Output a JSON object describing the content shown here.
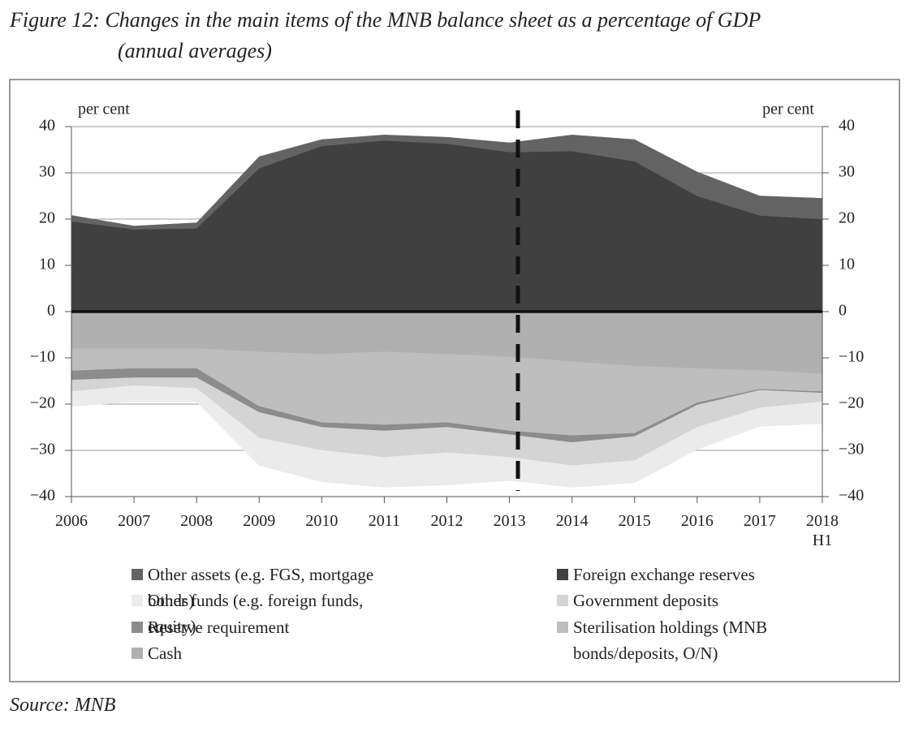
{
  "chart_data": {
    "type": "stacked-area",
    "title": "Figure 12: Changes in the main items of the MNB balance sheet as a percentage of GDP",
    "subtitle": "(annual averages)",
    "y_label": "per cent",
    "y2_label": "per cent",
    "source": "Source: MNB",
    "categories": [
      "2006",
      "2007",
      "2008",
      "2009",
      "2010",
      "2011",
      "2012",
      "2013",
      "2014",
      "2015",
      "2016",
      "2017",
      "2018 H1"
    ],
    "series": [
      {
        "name": "Foreign exchange reserves",
        "color": "#404040",
        "values": [
          19.5,
          17.8,
          18,
          31,
          35.8,
          37,
          36.3,
          34.5,
          34.7,
          32.5,
          25,
          20.8,
          20
        ]
      },
      {
        "name": "Other assets (e.g. FGS, mortgage bonds)",
        "color": "#636363",
        "values": [
          1.3,
          0.7,
          1.2,
          2.5,
          1.4,
          1.2,
          1.4,
          2.0,
          3.5,
          4.7,
          5.2,
          4.2,
          4.5
        ]
      },
      {
        "name": "Cash",
        "color": "#b0b0b0",
        "values": [
          -8,
          -8,
          -8,
          -8.7,
          -9.2,
          -8.7,
          -9.2,
          -9.8,
          -10.8,
          -11.8,
          -12.3,
          -12.7,
          -13.5
        ]
      },
      {
        "name": "Sterilisation holdings (MNB bonds/deposits, O/N)",
        "color": "#bebebe",
        "values": [
          -4.8,
          -4.3,
          -4.3,
          -11.8,
          -14.8,
          -15.8,
          -14.8,
          -16,
          -16,
          -14.5,
          -7.4,
          -4.1,
          -3.8
        ]
      },
      {
        "name": "Reserve requirement",
        "color": "#8c8c8c",
        "values": [
          -2,
          -2,
          -2,
          -1.3,
          -1,
          -1.3,
          -1,
          -0.8,
          -1.5,
          -0.7,
          -0.5,
          -0.2,
          -0.3
        ]
      },
      {
        "name": "Government deposits",
        "color": "#d4d4d4",
        "values": [
          -2.5,
          -1.7,
          -2.3,
          -5.5,
          -5,
          -5.7,
          -5.5,
          -4.9,
          -5,
          -5.2,
          -4.8,
          -3.8,
          -1.9
        ]
      },
      {
        "name": "Other funds (e.g. foreign funds, equity)",
        "color": "#ebebeb",
        "values": [
          -3.2,
          -3.5,
          -2.9,
          -6,
          -6.8,
          -6.5,
          -7,
          -5,
          -4.7,
          -4.8,
          -4.8,
          -4,
          -4.7
        ]
      }
    ],
    "ylim": [
      -40,
      40
    ],
    "yticks": [
      {
        "value": -40,
        "label": "−40"
      },
      {
        "value": -30,
        "label": "−30"
      },
      {
        "value": -20,
        "label": "−20"
      },
      {
        "value": -10,
        "label": "−10"
      },
      0,
      10,
      20,
      30,
      40
    ],
    "y2lim": [
      -40,
      40
    ],
    "y2ticks": [
      {
        "value": -40,
        "label": "−40"
      },
      {
        "value": -30,
        "label": "−30"
      },
      {
        "value": -20,
        "label": "−20"
      },
      {
        "value": -10,
        "label": "−10"
      },
      0,
      10,
      20,
      30,
      40
    ],
    "grid": true
  }
}
